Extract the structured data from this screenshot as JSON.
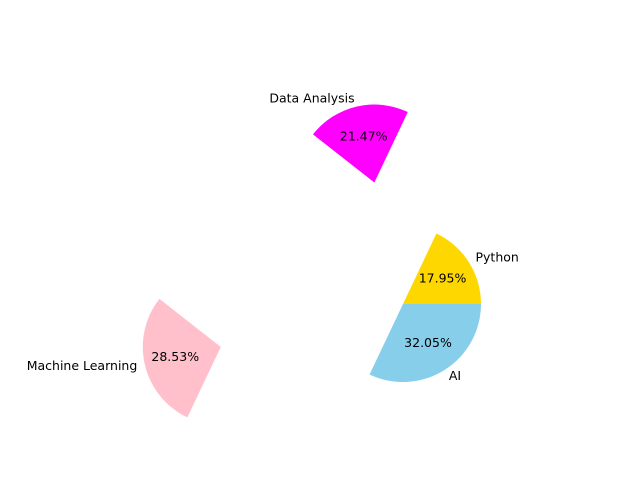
{
  "chart_data": {
    "type": "pie",
    "title": "",
    "explode": true,
    "start_angle_deg": 0,
    "direction": "counterclockwise",
    "slices": [
      {
        "label": "Python",
        "value": 17.95,
        "percent_text": "17.95%",
        "color": "#FFD700"
      },
      {
        "label": "Data Analysis",
        "value": 21.47,
        "percent_text": "21.47%",
        "color": "#FF00FF"
      },
      {
        "label": "Machine Learning",
        "value": 28.53,
        "percent_text": "28.53%",
        "color": "#FFC0CB"
      },
      {
        "label": "AI",
        "value": 32.05,
        "percent_text": "32.05%",
        "color": "#87CEEB"
      }
    ],
    "legend": false,
    "grid": false
  }
}
